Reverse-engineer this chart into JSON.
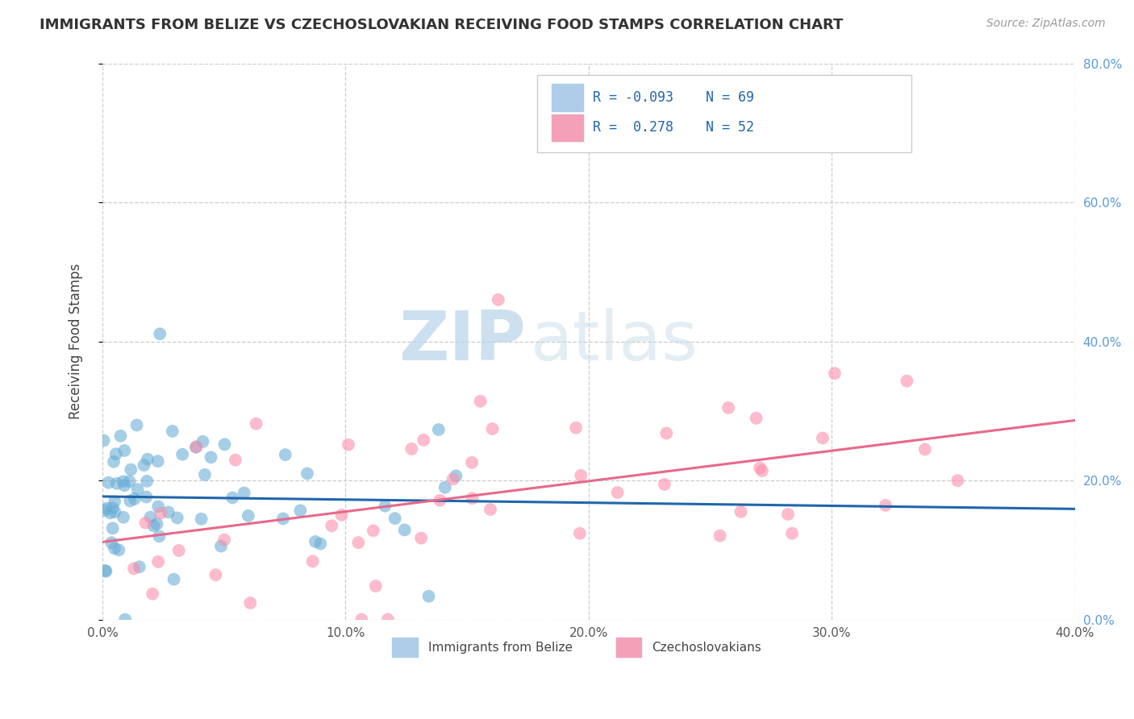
{
  "title": "IMMIGRANTS FROM BELIZE VS CZECHOSLOVAKIAN RECEIVING FOOD STAMPS CORRELATION CHART",
  "source": "Source: ZipAtlas.com",
  "ylabel": "Receiving Food Stamps",
  "xlim": [
    0.0,
    0.4
  ],
  "ylim": [
    0.0,
    0.8
  ],
  "xticks": [
    0.0,
    0.1,
    0.2,
    0.3,
    0.4
  ],
  "yticks_right": [
    0.0,
    0.2,
    0.4,
    0.6,
    0.8
  ],
  "xticklabels": [
    "0.0%",
    "10.0%",
    "20.0%",
    "30.0%",
    "40.0%"
  ],
  "yticklabels_right": [
    "0.0%",
    "20.0%",
    "40.0%",
    "60.0%",
    "80.0%"
  ],
  "belize_R": -0.093,
  "belize_N": 69,
  "czech_R": 0.278,
  "czech_N": 52,
  "belize_color": "#6baed6",
  "czech_color": "#fc8eac",
  "belize_line_color": "#2166ac",
  "czech_line_color": "#e8698a",
  "grid_color": "#cccccc",
  "background_color": "#ffffff",
  "watermark_zip": "ZIP",
  "watermark_atlas": "atlas",
  "title_fontsize": 13,
  "legend_label_belize": "Immigrants from Belize",
  "legend_label_czech": "Czechoslovakians",
  "belize_seed": 42,
  "czech_seed": 77
}
